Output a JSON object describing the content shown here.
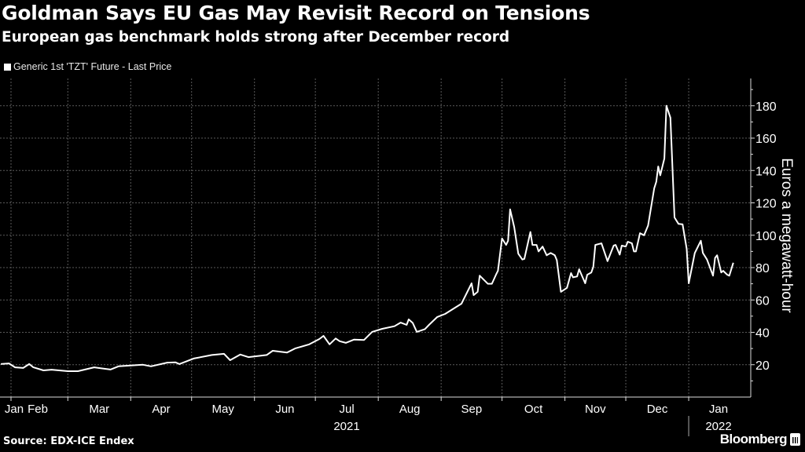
{
  "header": {
    "title": "Goldman Says EU Gas May Revisit Record on Tensions",
    "subtitle": "European gas benchmark holds strong after December record"
  },
  "footer": {
    "source": "Source: EDX-ICE Endex",
    "brand": "Bloomberg"
  },
  "colors": {
    "background": "#000000",
    "line": "#ffffff",
    "grid": "#555555",
    "text": "#ffffff"
  },
  "chart_data": {
    "type": "line",
    "title": "Goldman Says EU Gas May Revisit Record on Tensions",
    "subtitle": "European gas benchmark holds strong after December record",
    "ylabel": "Euros a megawatt-hour",
    "xlabel": "",
    "y_axis_side": "right",
    "ylim": [
      0,
      190
    ],
    "yticks": [
      20,
      40,
      60,
      80,
      100,
      120,
      140,
      160,
      180
    ],
    "xlim": [
      "2021-01-27",
      "2022-01-25"
    ],
    "xtick_labels": [
      "Jan",
      "Feb",
      "Mar",
      "Apr",
      "May",
      "Jun",
      "Jul",
      "Aug",
      "Sep",
      "Oct",
      "Nov",
      "Dec",
      "Jan"
    ],
    "year_labels": [
      "2021",
      "2022"
    ],
    "grid": true,
    "legend_position": "top-left",
    "series": [
      {
        "name": "Generic 1st 'TZT' Future - Last Price",
        "color": "#ffffff",
        "points": [
          [
            "2021-01-27",
            20.4
          ],
          [
            "2021-01-31",
            20.8
          ],
          [
            "2021-02-03",
            18.4
          ],
          [
            "2021-02-07",
            18
          ],
          [
            "2021-02-10",
            20.4
          ],
          [
            "2021-02-12",
            18.4
          ],
          [
            "2021-02-17",
            16.5
          ],
          [
            "2021-02-21",
            16.9
          ],
          [
            "2021-03-01",
            16
          ],
          [
            "2021-03-06",
            16
          ],
          [
            "2021-03-14",
            18.4
          ],
          [
            "2021-03-22",
            17
          ],
          [
            "2021-03-26",
            19
          ],
          [
            "2021-04-07",
            20
          ],
          [
            "2021-04-11",
            19
          ],
          [
            "2021-04-19",
            21.3
          ],
          [
            "2021-04-23",
            21.5
          ],
          [
            "2021-04-25",
            20.4
          ],
          [
            "2021-05-02",
            23.8
          ],
          [
            "2021-05-11",
            26
          ],
          [
            "2021-05-17",
            26.7
          ],
          [
            "2021-05-20",
            22.8
          ],
          [
            "2021-05-25",
            26.3
          ],
          [
            "2021-05-29",
            24.7
          ],
          [
            "2021-06-07",
            26
          ],
          [
            "2021-06-10",
            28.6
          ],
          [
            "2021-06-17",
            27.5
          ],
          [
            "2021-06-21",
            30
          ],
          [
            "2021-06-28",
            32.6
          ],
          [
            "2021-07-03",
            35.9
          ],
          [
            "2021-07-05",
            37.8
          ],
          [
            "2021-07-08",
            32.6
          ],
          [
            "2021-07-11",
            36.2
          ],
          [
            "2021-07-13",
            34.5
          ],
          [
            "2021-07-16",
            33.5
          ],
          [
            "2021-07-20",
            35.5
          ],
          [
            "2021-07-25",
            35.3
          ],
          [
            "2021-07-29",
            40.3
          ],
          [
            "2021-08-03",
            42.2
          ],
          [
            "2021-08-09",
            43.8
          ],
          [
            "2021-08-12",
            46
          ],
          [
            "2021-08-15",
            44.6
          ],
          [
            "2021-08-16",
            48
          ],
          [
            "2021-08-18",
            45.8
          ],
          [
            "2021-08-20",
            40.3
          ],
          [
            "2021-08-24",
            42
          ],
          [
            "2021-08-26",
            44.6
          ],
          [
            "2021-08-30",
            49.4
          ],
          [
            "2021-09-03",
            51.4
          ],
          [
            "2021-09-11",
            57.7
          ],
          [
            "2021-09-16",
            70.3
          ],
          [
            "2021-09-17",
            63
          ],
          [
            "2021-09-19",
            65
          ],
          [
            "2021-09-20",
            75
          ],
          [
            "2021-09-24",
            70
          ],
          [
            "2021-09-26",
            70
          ],
          [
            "2021-09-28",
            75.6
          ],
          [
            "2021-09-29",
            78
          ],
          [
            "2021-10-01",
            98
          ],
          [
            "2021-10-03",
            94
          ],
          [
            "2021-10-04",
            96.6
          ],
          [
            "2021-10-05",
            116
          ],
          [
            "2021-10-07",
            105
          ],
          [
            "2021-10-09",
            88.6
          ],
          [
            "2021-10-11",
            85
          ],
          [
            "2021-10-12",
            85.4
          ],
          [
            "2021-10-15",
            102
          ],
          [
            "2021-10-16",
            94
          ],
          [
            "2021-10-18",
            94
          ],
          [
            "2021-10-19",
            90
          ],
          [
            "2021-10-21",
            93
          ],
          [
            "2021-10-23",
            87.6
          ],
          [
            "2021-10-25",
            89
          ],
          [
            "2021-10-27",
            87.6
          ],
          [
            "2021-10-28",
            84.6
          ],
          [
            "2021-10-30",
            65
          ],
          [
            "2021-11-02",
            67.5
          ],
          [
            "2021-11-04",
            76.6
          ],
          [
            "2021-11-05",
            74
          ],
          [
            "2021-11-07",
            74.5
          ],
          [
            "2021-11-08",
            79
          ],
          [
            "2021-11-11",
            70.3
          ],
          [
            "2021-11-12",
            75.6
          ],
          [
            "2021-11-14",
            77
          ],
          [
            "2021-11-15",
            80.5
          ],
          [
            "2021-11-16",
            94
          ],
          [
            "2021-11-19",
            95
          ],
          [
            "2021-11-22",
            84
          ],
          [
            "2021-11-25",
            93.6
          ],
          [
            "2021-11-26",
            94
          ],
          [
            "2021-11-28",
            88
          ],
          [
            "2021-11-29",
            93.6
          ],
          [
            "2021-12-01",
            93
          ],
          [
            "2021-12-02",
            96
          ],
          [
            "2021-12-04",
            95
          ],
          [
            "2021-12-05",
            90
          ],
          [
            "2021-12-06",
            90
          ],
          [
            "2021-12-08",
            101.3
          ],
          [
            "2021-12-10",
            100
          ],
          [
            "2021-12-12",
            106
          ],
          [
            "2021-12-15",
            129
          ],
          [
            "2021-12-16",
            133
          ],
          [
            "2021-12-17",
            142.5
          ],
          [
            "2021-12-18",
            137
          ],
          [
            "2021-12-20",
            147.4
          ],
          [
            "2021-12-21",
            180
          ],
          [
            "2021-12-23",
            172.6
          ],
          [
            "2021-12-25",
            111
          ],
          [
            "2021-12-27",
            107
          ],
          [
            "2021-12-29",
            106.7
          ],
          [
            "2021-12-31",
            91.6
          ],
          [
            "2022-01-01",
            70.3
          ],
          [
            "2022-01-04",
            89
          ],
          [
            "2022-01-07",
            96.6
          ],
          [
            "2022-01-08",
            89
          ],
          [
            "2022-01-10",
            85
          ],
          [
            "2022-01-13",
            75
          ],
          [
            "2022-01-14",
            86
          ],
          [
            "2022-01-15",
            87.6
          ],
          [
            "2022-01-17",
            77
          ],
          [
            "2022-01-18",
            78
          ],
          [
            "2022-01-20",
            75.6
          ],
          [
            "2022-01-21",
            75
          ],
          [
            "2022-01-23",
            83
          ]
        ]
      }
    ]
  }
}
